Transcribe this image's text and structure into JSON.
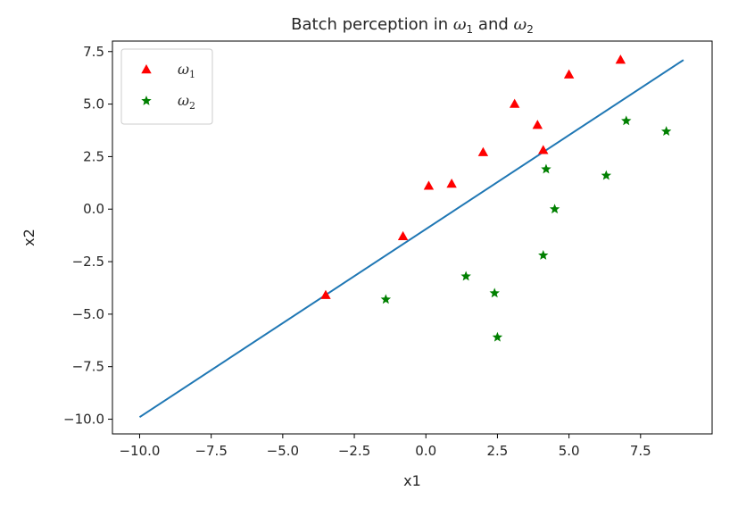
{
  "chart_data": {
    "type": "scatter",
    "title": "Batch perception in ω1 and ω2",
    "title_parts": [
      {
        "text": "Batch perception in ",
        "style": "normal"
      },
      {
        "text": "ω",
        "style": "italic"
      },
      {
        "text": "1",
        "style": "sub"
      },
      {
        "text": " and ",
        "style": "normal"
      },
      {
        "text": "ω",
        "style": "italic"
      },
      {
        "text": "2",
        "style": "sub"
      }
    ],
    "xlabel": "x1",
    "ylabel": "x2",
    "xlim": [
      -10.95,
      10.0
    ],
    "ylim": [
      -10.7,
      8.0
    ],
    "xticks": [
      -10.0,
      -7.5,
      -5.0,
      -2.5,
      0.0,
      2.5,
      5.0,
      7.5
    ],
    "xtick_labels": [
      "−10.0",
      "−7.5",
      "−5.0",
      "−2.5",
      "0.0",
      "2.5",
      "5.0",
      "7.5"
    ],
    "yticks": [
      -10.0,
      -7.5,
      -5.0,
      -2.5,
      0.0,
      2.5,
      5.0,
      7.5
    ],
    "ytick_labels": [
      "−10.0",
      "−7.5",
      "−5.0",
      "−2.5",
      "0.0",
      "2.5",
      "5.0",
      "7.5"
    ],
    "grid": false,
    "legend_position": "top-left",
    "series": [
      {
        "name": "ω1",
        "name_base": "ω",
        "name_sub": "1",
        "marker": "triangle",
        "color": "#ff0000",
        "points": [
          [
            -3.5,
            -4.1
          ],
          [
            -0.8,
            -1.3
          ],
          [
            0.1,
            1.1
          ],
          [
            0.9,
            1.2
          ],
          [
            2.0,
            2.7
          ],
          [
            3.1,
            5.0
          ],
          [
            3.9,
            4.0
          ],
          [
            4.1,
            2.8
          ],
          [
            5.0,
            6.4
          ],
          [
            6.8,
            7.1
          ]
        ]
      },
      {
        "name": "ω2",
        "name_base": "ω",
        "name_sub": "2",
        "marker": "star",
        "color": "#008000",
        "points": [
          [
            -1.4,
            -4.3
          ],
          [
            1.4,
            -3.2
          ],
          [
            2.4,
            -4.0
          ],
          [
            2.5,
            -6.1
          ],
          [
            4.1,
            -2.2
          ],
          [
            4.2,
            1.9
          ],
          [
            4.5,
            0.0
          ],
          [
            6.3,
            1.6
          ],
          [
            7.0,
            4.2
          ],
          [
            8.4,
            3.7
          ]
        ]
      },
      {
        "name": "",
        "marker": "line",
        "color": "#1f77b4",
        "points": [
          [
            -10.0,
            -9.9
          ],
          [
            9.0,
            7.1
          ]
        ]
      }
    ]
  }
}
